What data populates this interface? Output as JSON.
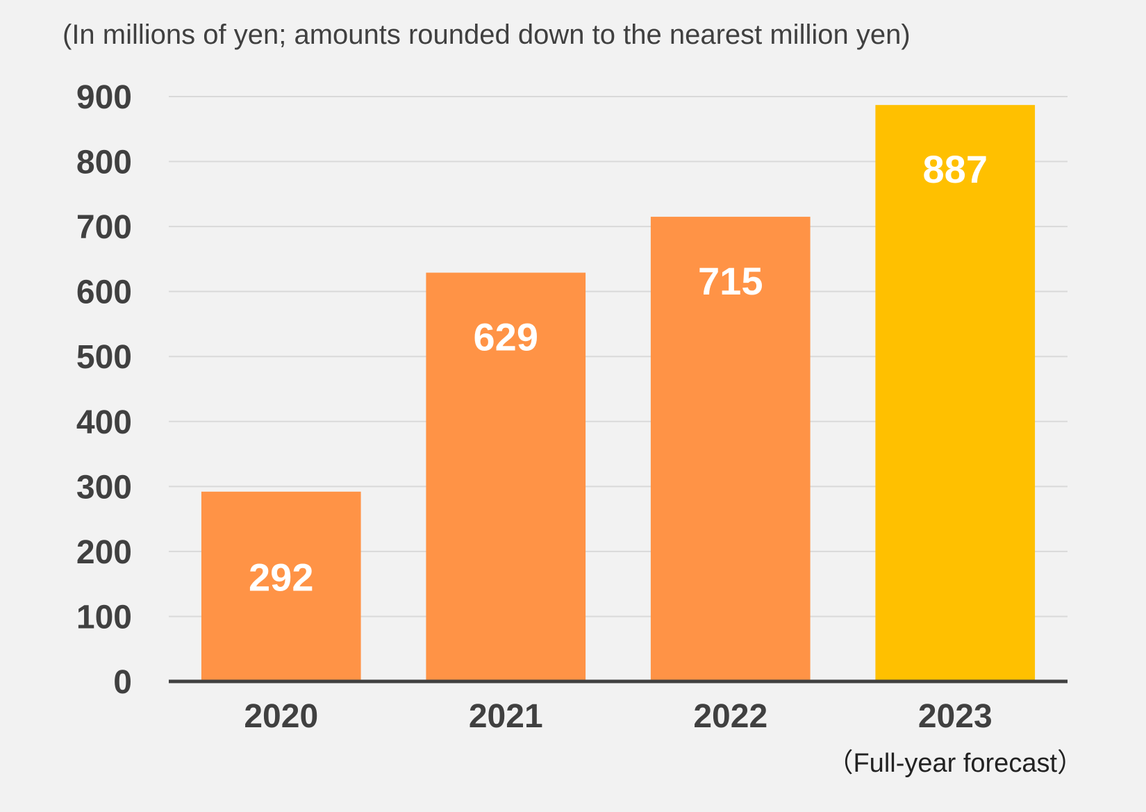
{
  "chart_data": {
    "type": "bar",
    "title": "",
    "subtitle": "(In millions of yen; amounts rounded down to the nearest million yen)",
    "xlabel": "",
    "ylabel": "",
    "ylim": [
      0,
      900
    ],
    "yticks": [
      0,
      100,
      200,
      300,
      400,
      500,
      600,
      700,
      800,
      900
    ],
    "grid": true,
    "categories": [
      "2020",
      "2021",
      "2022",
      "2023"
    ],
    "category_notes": [
      "",
      "",
      "",
      "（Full-year forecast）"
    ],
    "values": [
      292,
      629,
      715,
      887
    ],
    "data_labels": [
      "292",
      "629",
      "715",
      "887"
    ],
    "bar_colors": [
      "#ff9346",
      "#ff9346",
      "#ff9346",
      "#ffc000"
    ],
    "colors": {
      "background": "#f2f2f2",
      "gridline": "#d9d9d9",
      "axis": "#404040",
      "text": "#404040",
      "data_label": "#ffffff"
    }
  }
}
